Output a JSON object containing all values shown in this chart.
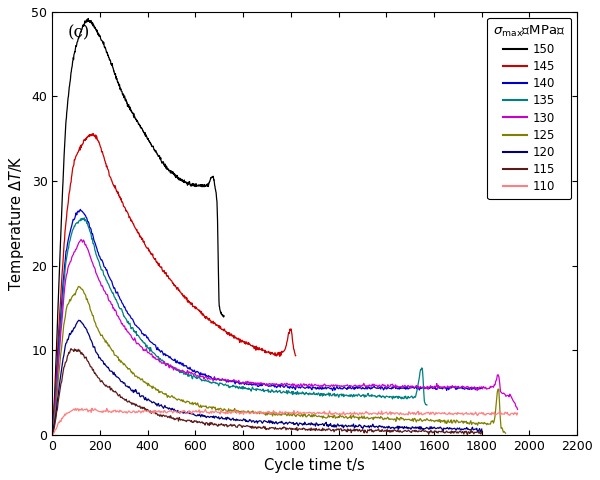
{
  "title": "(c)",
  "xlabel": "Cycle time t/s",
  "ylabel": "Temperature $\\Delta T$/K",
  "xlim": [
    0,
    2200
  ],
  "ylim": [
    0,
    50
  ],
  "xticks": [
    0,
    200,
    400,
    600,
    800,
    1000,
    1200,
    1400,
    1600,
    1800,
    2000,
    2200
  ],
  "yticks": [
    0,
    10,
    20,
    30,
    40,
    50
  ],
  "series": [
    {
      "label": "150",
      "color": "#000000",
      "points_t": [
        0,
        10,
        30,
        60,
        100,
        150,
        200,
        300,
        400,
        500,
        600,
        650,
        670,
        690,
        700,
        720
      ],
      "points_v": [
        0,
        5,
        20,
        38,
        46,
        49,
        47,
        40,
        35,
        31,
        29.5,
        29.5,
        30.5,
        27.5,
        15,
        14
      ]
    },
    {
      "label": "145",
      "color": "#cc0000",
      "points_t": [
        0,
        10,
        30,
        60,
        100,
        170,
        250,
        400,
        600,
        800,
        950,
        970,
        1000,
        1010,
        1020
      ],
      "points_v": [
        0,
        4,
        14,
        26,
        33,
        35.5,
        30,
        22,
        15,
        11,
        9.5,
        9.8,
        12.5,
        10.5,
        9.2
      ]
    },
    {
      "label": "140",
      "color": "#0000cc",
      "points_t": [
        0,
        10,
        30,
        60,
        100,
        120,
        200,
        350,
        500,
        700,
        900,
        1200,
        1500,
        1800
      ],
      "points_v": [
        0,
        3,
        12,
        22,
        26,
        26.5,
        21,
        13,
        9,
        6.5,
        5.8,
        5.5,
        5.5,
        5.5
      ]
    },
    {
      "label": "135",
      "color": "#008080",
      "points_t": [
        0,
        10,
        30,
        60,
        100,
        130,
        200,
        350,
        500,
        700,
        900,
        1100,
        1300,
        1500,
        1520,
        1550,
        1560,
        1570
      ],
      "points_v": [
        0,
        3,
        11,
        21,
        25,
        25.5,
        20,
        12,
        8,
        6,
        5.2,
        4.8,
        4.6,
        4.4,
        4.5,
        8,
        4,
        3.5
      ]
    },
    {
      "label": "130",
      "color": "#cc00cc",
      "points_t": [
        0,
        10,
        30,
        60,
        100,
        120,
        200,
        350,
        500,
        700,
        900,
        1100,
        1300,
        1500,
        1700,
        1820,
        1850,
        1870,
        1880,
        1920,
        1950
      ],
      "points_v": [
        0,
        2.5,
        10,
        19,
        22,
        23,
        18,
        11,
        8,
        6.5,
        6,
        5.8,
        5.8,
        5.7,
        5.6,
        5.5,
        5.8,
        7,
        5.0,
        4.5,
        3.0
      ]
    },
    {
      "label": "125",
      "color": "#808000",
      "points_t": [
        0,
        10,
        30,
        60,
        100,
        110,
        200,
        350,
        500,
        700,
        900,
        1100,
        1300,
        1500,
        1700,
        1820,
        1850,
        1870,
        1880,
        1900
      ],
      "points_v": [
        0,
        2,
        8,
        15,
        17,
        17.5,
        12,
        7,
        4.5,
        3,
        2.5,
        2.2,
        2.0,
        1.8,
        1.5,
        1.3,
        1.5,
        5.5,
        1.0,
        0.2
      ]
    },
    {
      "label": "120",
      "color": "#000080",
      "points_t": [
        0,
        10,
        30,
        60,
        100,
        110,
        200,
        350,
        500,
        700,
        900,
        1100,
        1300,
        1500,
        1700,
        1800
      ],
      "points_v": [
        0,
        1.5,
        6,
        11,
        13,
        13.5,
        9,
        5,
        3,
        2,
        1.5,
        1.2,
        1.0,
        0.8,
        0.7,
        0.6
      ]
    },
    {
      "label": "115",
      "color": "#5c1a1a",
      "points_t": [
        0,
        10,
        30,
        60,
        80,
        100,
        200,
        350,
        500,
        700,
        900,
        1100,
        1300,
        1500,
        1700,
        1800
      ],
      "points_v": [
        0,
        1.2,
        5,
        9,
        10,
        10,
        6.5,
        3.5,
        2,
        1.2,
        0.8,
        0.6,
        0.5,
        0.4,
        0.3,
        0.3
      ]
    },
    {
      "label": "110",
      "color": "#ff8080",
      "points_t": [
        0,
        10,
        30,
        60,
        80,
        100,
        200,
        400,
        600,
        800,
        1000,
        1200,
        1400,
        1600,
        1800,
        1950
      ],
      "points_v": [
        0,
        0.5,
        1.5,
        2.5,
        2.8,
        3.0,
        2.8,
        2.7,
        2.7,
        2.6,
        2.6,
        2.5,
        2.5,
        2.5,
        2.5,
        2.5
      ]
    }
  ]
}
